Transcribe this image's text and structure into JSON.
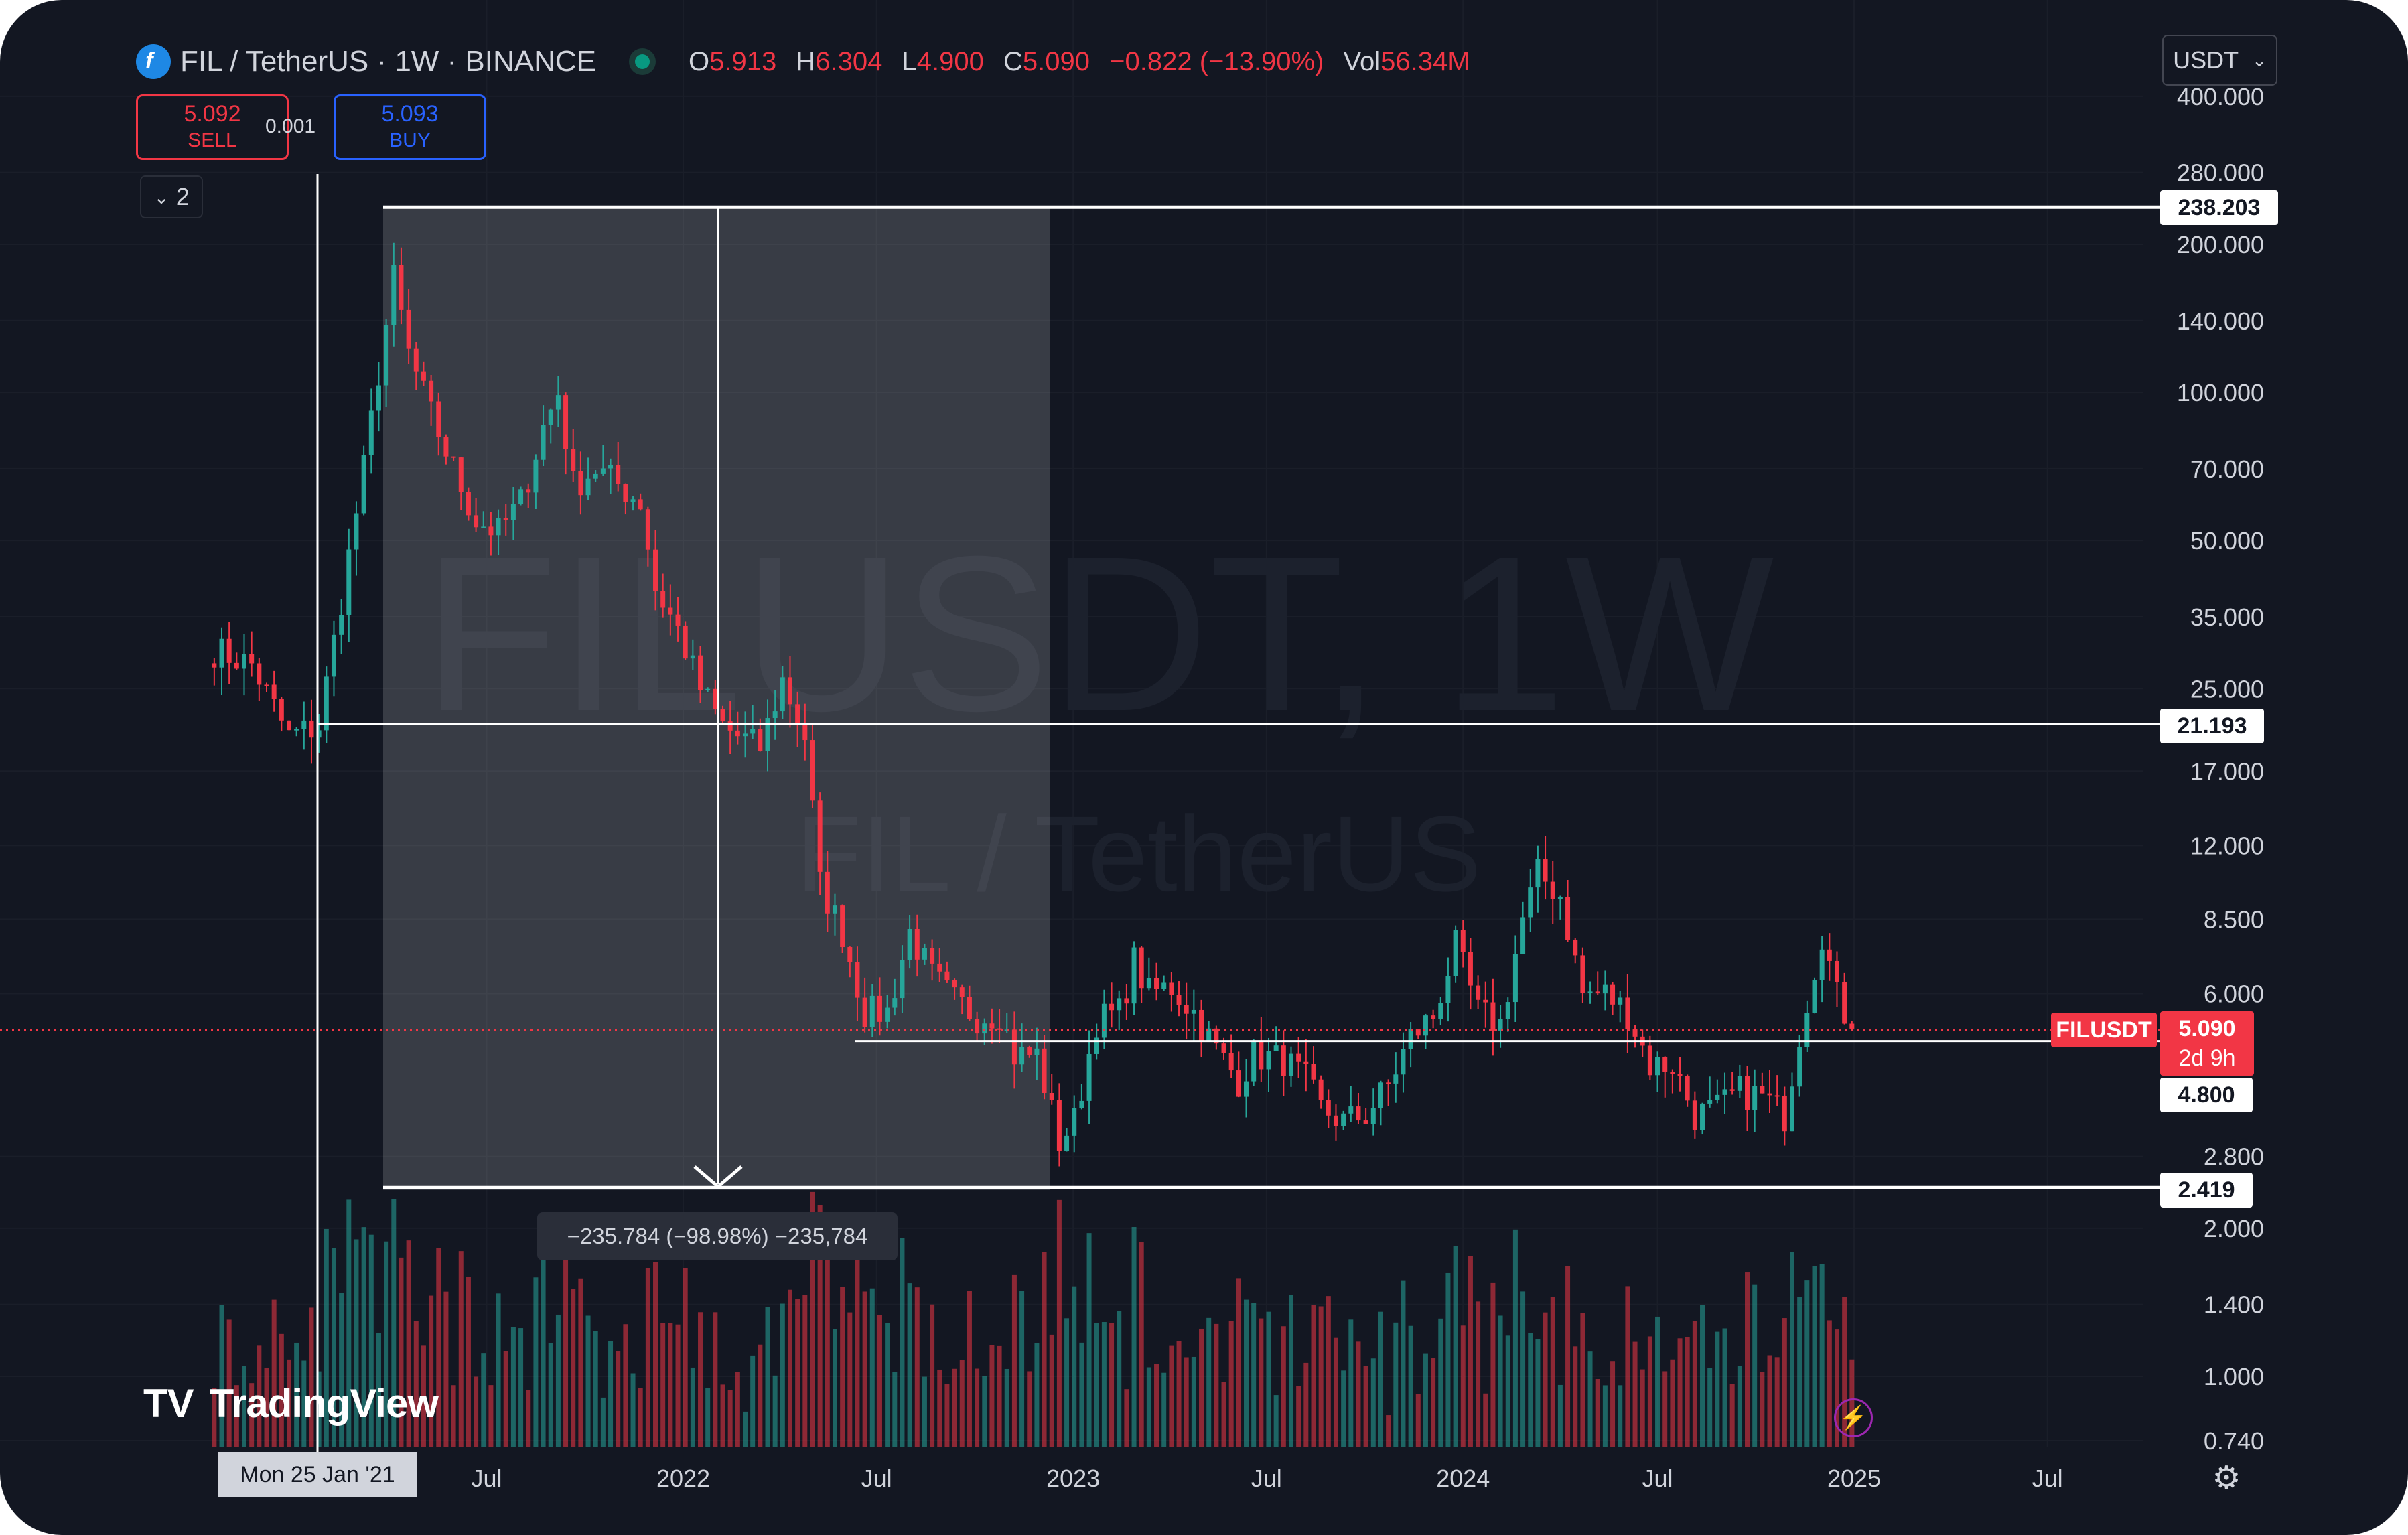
{
  "header": {
    "symbol": "FIL",
    "title": "FIL / TetherUS · 1W · BINANCE",
    "open_label": "O",
    "open": "5.913",
    "high_label": "H",
    "high": "6.304",
    "low_label": "L",
    "low": "4.900",
    "close_label": "C",
    "close": "5.090",
    "change": "−0.822 (−13.90%)",
    "vol_label": "Vol",
    "volume": "56.34M",
    "currency": "USDT"
  },
  "trade": {
    "sell_price": "5.092",
    "sell_label": "SELL",
    "spread": "0.001",
    "buy_price": "5.093",
    "buy_label": "BUY"
  },
  "indicators_toggle": "2",
  "watermark": {
    "line1": "FILUSDT, 1W",
    "line2": "FIL / TetherUS"
  },
  "logo_text": "TradingView",
  "measure": {
    "label": "−235.784 (−98.98%) −235,784"
  },
  "price_labels": {
    "level_high": "238.203",
    "level_mid": "21.193",
    "level_support": "4.800",
    "level_low": "2.419",
    "ticker": "FILUSDT",
    "current": "5.090",
    "countdown": "2d 9h"
  },
  "crosshair_date": "Mon 25 Jan '21",
  "colors": {
    "up": "#26a69a",
    "down": "#f23645",
    "bg": "#131722",
    "text": "#d1d4dc",
    "buy": "#2962ff"
  },
  "chart_data": {
    "type": "candlestick",
    "title": "FIL / TetherUS · 1W · BINANCE",
    "scale": "log",
    "ylim": [
      0.74,
      400
    ],
    "y_ticks": [
      "400.000",
      "280.000",
      "200.000",
      "140.000",
      "100.000",
      "70.000",
      "50.000",
      "35.000",
      "25.000",
      "17.000",
      "12.000",
      "8.500",
      "6.000",
      "2.800",
      "2.000",
      "1.400",
      "1.000",
      "0.740"
    ],
    "x_ticks": [
      "Jul",
      "2022",
      "Jul",
      "2023",
      "Jul",
      "2024",
      "Jul",
      "2025",
      "Jul"
    ],
    "xlim": [
      "2020-10-19",
      "2025-12-01"
    ],
    "horizontal_levels": [
      238.203,
      21.193,
      4.8,
      2.419
    ],
    "last_price": 5.09,
    "anchors": [
      [
        "2020-10-19",
        30
      ],
      [
        "2020-11-23",
        28
      ],
      [
        "2020-12-28",
        20
      ],
      [
        "2021-01-25",
        21
      ],
      [
        "2021-02-15",
        38
      ],
      [
        "2021-03-08",
        70
      ],
      [
        "2021-03-22",
        110
      ],
      [
        "2021-04-05",
        170
      ],
      [
        "2021-04-19",
        120
      ],
      [
        "2021-05-10",
        90
      ],
      [
        "2021-05-31",
        70
      ],
      [
        "2021-06-21",
        55
      ],
      [
        "2021-07-12",
        52
      ],
      [
        "2021-08-02",
        60
      ],
      [
        "2021-08-23",
        85
      ],
      [
        "2021-09-06",
        100
      ],
      [
        "2021-09-20",
        65
      ],
      [
        "2021-10-11",
        70
      ],
      [
        "2021-11-01",
        65
      ],
      [
        "2021-11-22",
        60
      ],
      [
        "2021-12-06",
        40
      ],
      [
        "2021-12-27",
        33
      ],
      [
        "2022-01-17",
        25
      ],
      [
        "2022-02-07",
        21
      ],
      [
        "2022-02-21",
        20
      ],
      [
        "2022-03-14",
        19
      ],
      [
        "2022-04-04",
        26
      ],
      [
        "2022-04-25",
        20
      ],
      [
        "2022-05-09",
        10
      ],
      [
        "2022-05-30",
        8
      ],
      [
        "2022-06-20",
        5.5
      ],
      [
        "2022-07-11",
        5.5
      ],
      [
        "2022-08-01",
        8
      ],
      [
        "2022-08-22",
        6.5
      ],
      [
        "2022-09-12",
        5.8
      ],
      [
        "2022-10-03",
        5.4
      ],
      [
        "2022-10-24",
        5.5
      ],
      [
        "2022-11-07",
        4.5
      ],
      [
        "2022-11-28",
        4.5
      ],
      [
        "2022-12-19",
        3.0
      ],
      [
        "2023-01-02",
        3.3
      ],
      [
        "2023-01-23",
        5.3
      ],
      [
        "2023-02-13",
        5.5
      ],
      [
        "2023-02-27",
        7.0
      ],
      [
        "2023-03-13",
        6.0
      ],
      [
        "2023-04-03",
        6.2
      ],
      [
        "2023-04-24",
        5.5
      ],
      [
        "2023-05-15",
        4.6
      ],
      [
        "2023-06-05",
        4.0
      ],
      [
        "2023-06-19",
        4.5
      ],
      [
        "2023-07-17",
        4.4
      ],
      [
        "2023-08-07",
        4.0
      ],
      [
        "2023-08-21",
        3.5
      ],
      [
        "2023-09-11",
        3.3
      ],
      [
        "2023-10-02",
        3.4
      ],
      [
        "2023-10-23",
        3.9
      ],
      [
        "2023-11-13",
        4.9
      ],
      [
        "2023-12-04",
        5.4
      ],
      [
        "2023-12-25",
        7.5
      ],
      [
        "2024-01-15",
        5.5
      ],
      [
        "2024-02-05",
        5.2
      ],
      [
        "2024-02-26",
        8.5
      ],
      [
        "2024-03-11",
        10.5
      ],
      [
        "2024-04-01",
        9.5
      ],
      [
        "2024-04-22",
        6.0
      ],
      [
        "2024-05-13",
        6.0
      ],
      [
        "2024-06-03",
        5.5
      ],
      [
        "2024-06-24",
        4.3
      ],
      [
        "2024-07-15",
        4.3
      ],
      [
        "2024-08-05",
        3.4
      ],
      [
        "2024-08-26",
        3.5
      ],
      [
        "2024-09-16",
        3.8
      ],
      [
        "2024-10-07",
        3.7
      ],
      [
        "2024-10-28",
        3.4
      ],
      [
        "2024-11-11",
        5.0
      ],
      [
        "2024-12-02",
        8.0
      ],
      [
        "2024-12-16",
        5.9
      ],
      [
        "2024-12-30",
        5.09
      ]
    ],
    "volume_note": "weekly volume histogram, bars colored by candle direction"
  }
}
